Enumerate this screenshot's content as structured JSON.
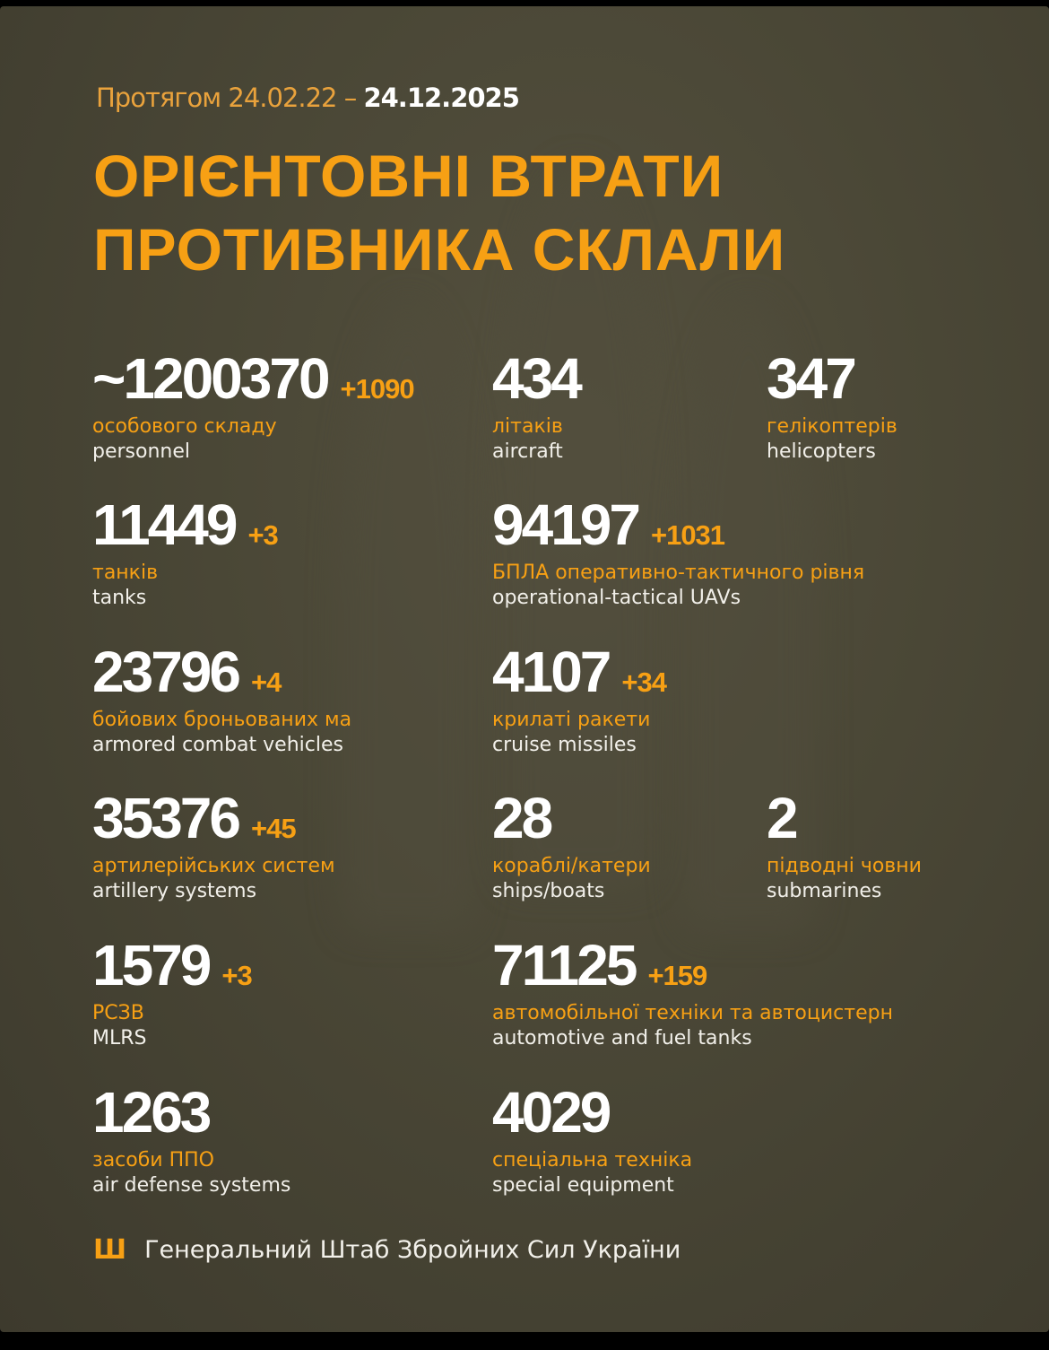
{
  "header": {
    "period_prefix": "Протягом 24.02.22 –",
    "period_end": "24.12.2025",
    "title_line1": "ОРІЄНТОВНІ ВТРАТИ",
    "title_line2": "ПРОТИВНИКА СКЛАЛИ"
  },
  "items": [
    {
      "value": "~1200370",
      "delta": "+1090",
      "ua": "особового складу",
      "en": "personnel"
    },
    {
      "value": "434",
      "delta": "",
      "ua": "літаків",
      "en": "aircraft"
    },
    {
      "value": "347",
      "delta": "",
      "ua": "гелікоптерів",
      "en": "helicopters"
    },
    {
      "value": "11449",
      "delta": "+3",
      "ua": "танків",
      "en": "tanks"
    },
    {
      "value": "94197",
      "delta": "+1031",
      "ua": "БПЛА оперативно-тактичного рівня",
      "en": "operational-tactical UAVs"
    },
    {
      "value": "23796",
      "delta": "+4",
      "ua": "бойових броньованих ма",
      "en": "armored combat vehicles"
    },
    {
      "value": "4107",
      "delta": "+34",
      "ua": "крилаті ракети",
      "en": "cruise missiles"
    },
    {
      "value": "35376",
      "delta": "+45",
      "ua": "артилерійських систем",
      "en": "artillery systems"
    },
    {
      "value": "28",
      "delta": "",
      "ua": "кораблі/катери",
      "en": "ships/boats"
    },
    {
      "value": "2",
      "delta": "",
      "ua": "підводні човни",
      "en": "submarines"
    },
    {
      "value": "1579",
      "delta": "+3",
      "ua": "РСЗВ",
      "en": "MLRS"
    },
    {
      "value": "71125",
      "delta": "+159",
      "ua": "автомобільної техніки та автоцистерн",
      "en": "automotive and fuel tanks"
    },
    {
      "value": "1263",
      "delta": "",
      "ua": "засоби ППО",
      "en": "air defense systems"
    },
    {
      "value": "4029",
      "delta": "",
      "ua": "спеціальна техніка",
      "en": "special equipment"
    }
  ],
  "footer": {
    "icon": "trident-icon",
    "text": "Генеральний Штаб Збройних Сил України"
  },
  "colors": {
    "accent": "#f7a014",
    "background": "#4a4736",
    "text": "#ffffff"
  }
}
